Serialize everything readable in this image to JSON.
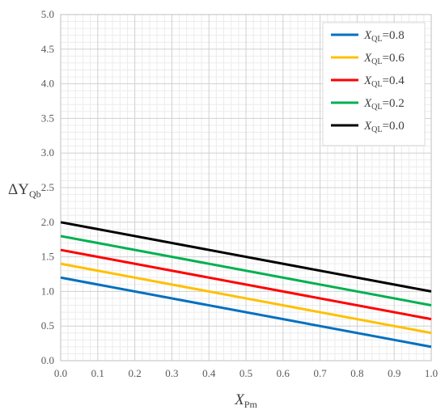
{
  "chart_data": {
    "type": "line",
    "xlabel": "X",
    "xlabel_sub": "Pm",
    "ylabel": "ΔY",
    "ylabel_sub": "Qb",
    "xlim": [
      0.0,
      1.0
    ],
    "ylim": [
      0.0,
      5.0
    ],
    "x_ticks": [
      "0.0",
      "0.1",
      "0.2",
      "0.3",
      "0.4",
      "0.5",
      "0.6",
      "0.7",
      "0.8",
      "0.9",
      "1.0"
    ],
    "y_ticks": [
      "0.0",
      "0.5",
      "1.0",
      "1.5",
      "2.0",
      "2.5",
      "3.0",
      "3.5",
      "4.0",
      "4.5",
      "5.0"
    ],
    "grid": "major and minor",
    "legend_position": "top-right",
    "x": [
      0.0,
      1.0
    ],
    "series": [
      {
        "name_main": "X",
        "name_sub": "QL",
        "name_value": "=0.8",
        "color": "#0070C0",
        "values": [
          1.2,
          0.2
        ]
      },
      {
        "name_main": "X",
        "name_sub": "QL",
        "name_value": "=0.6",
        "color": "#FFC000",
        "values": [
          1.4,
          0.4
        ]
      },
      {
        "name_main": "X",
        "name_sub": "QL",
        "name_value": "=0.4",
        "color": "#FF0000",
        "values": [
          1.6,
          0.6
        ]
      },
      {
        "name_main": "X",
        "name_sub": "QL",
        "name_value": "=0.2",
        "color": "#00B050",
        "values": [
          1.8,
          0.8
        ]
      },
      {
        "name_main": "X",
        "name_sub": "QL",
        "name_value": "=0.0",
        "color": "#000000",
        "values": [
          2.0,
          1.0
        ]
      }
    ]
  }
}
